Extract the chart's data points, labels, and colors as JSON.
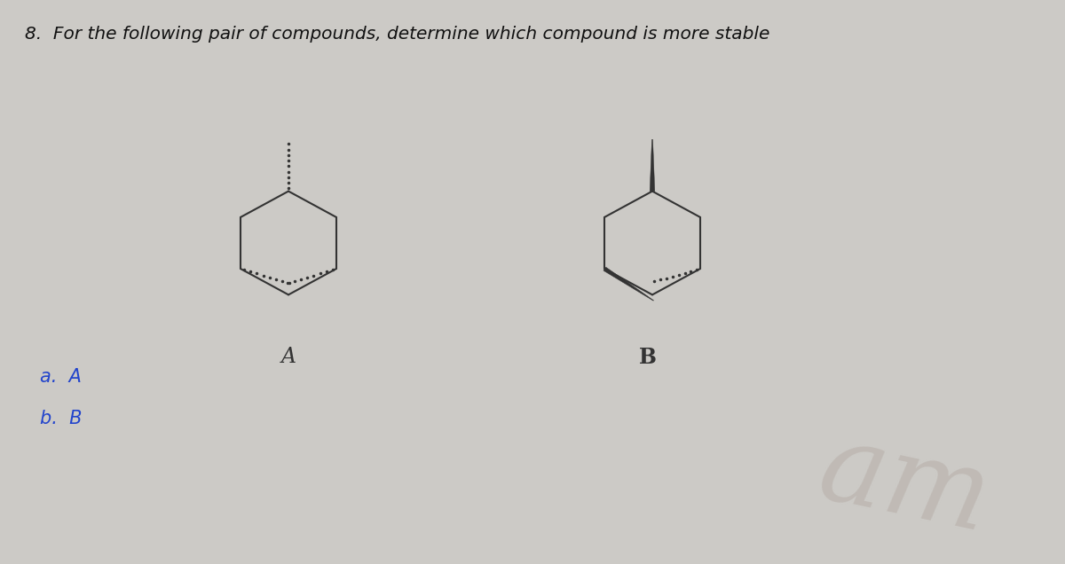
{
  "title": "8.  For the following pair of compounds, determine which compound is more stable",
  "title_color": "#111111",
  "title_fontsize": 14.5,
  "bg_color": "#cccac6",
  "label_A": "A",
  "label_B": "B",
  "option_a": "a.  A",
  "option_b": "b.  B",
  "label_fontsize": 17,
  "option_fontsize": 15,
  "watermark": "am",
  "watermark_color": "#b8b0aa",
  "watermark_fontsize": 90,
  "line_color": "#333333",
  "line_width": 1.5
}
